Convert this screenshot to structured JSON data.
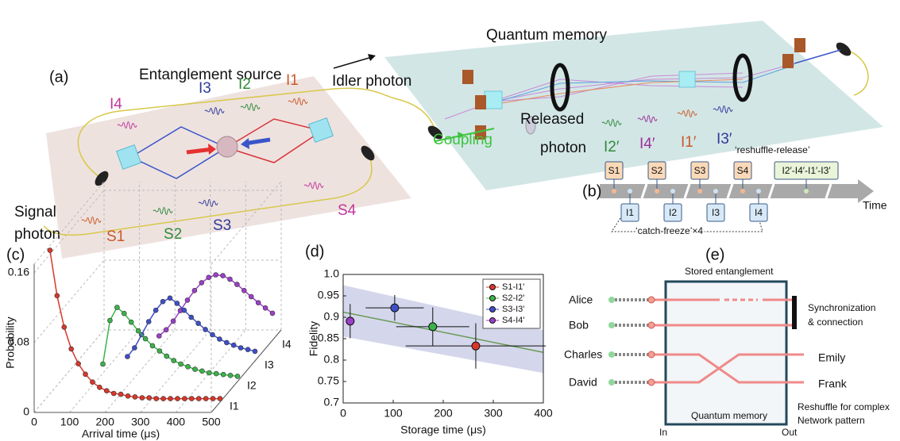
{
  "panel_a": {
    "label": "(a)",
    "source_title": "Entanglement source",
    "memory_title": "Quantum memory",
    "idler_photon": "Idler photon",
    "coupling": "Coupling",
    "released_photon": [
      "Released",
      "photon"
    ],
    "signal_photon": [
      "Signal",
      "photon"
    ],
    "idler_modes": [
      "I4",
      "I3",
      "I2",
      "I1"
    ],
    "released_modes": [
      "I2′",
      "I4′",
      "I1′",
      "I3′"
    ],
    "signal_modes": [
      "S1",
      "S2",
      "S3",
      "S4"
    ]
  },
  "panel_b": {
    "label": "(b)",
    "release_label": "‘reshuffle-release’",
    "signal_boxes": [
      "S1",
      "S2",
      "S3",
      "S4"
    ],
    "release_box": "I2′-I4′-I1′-I3′",
    "idler_boxes": [
      "I1",
      "I2",
      "I3",
      "I4"
    ],
    "time": "Time",
    "catch_label": "‘catch-freeze’×4"
  },
  "panel_e": {
    "label": "(e)",
    "title": "Stored entanglement",
    "users_in": [
      "Alice",
      "Bob",
      "Charles",
      "David"
    ],
    "sync": [
      "Synchronization",
      "& connection"
    ],
    "users_out": [
      "Emily",
      "Frank"
    ],
    "memory": "Quantum memory",
    "in": "In",
    "out": "Out",
    "note": [
      "Reshuffle for complex",
      "Network pattern"
    ]
  },
  "chart_data": [
    {
      "type": "line",
      "panel_label": "(c)",
      "xlabel": "Arrival time (μs)",
      "ylabel": "Probability",
      "xlim": [
        0,
        500
      ],
      "xticks": [
        0,
        100,
        200,
        300,
        400,
        500
      ],
      "ylim": [
        0,
        0.17
      ],
      "yticks": [
        0,
        0.08,
        0.16
      ],
      "grid": true,
      "series": [
        {
          "name": "I1",
          "color": "#d9372b",
          "x": [
            20,
            40,
            60,
            80,
            100,
            120,
            140,
            160,
            180,
            200,
            220,
            240,
            260,
            280,
            300,
            320,
            340,
            360,
            380,
            400,
            420,
            440,
            460,
            480,
            500
          ],
          "values": [
            0.174,
            0.122,
            0.086,
            0.061,
            0.044,
            0.032,
            0.023,
            0.017,
            0.013,
            0.01,
            0.009,
            0.007,
            0.006,
            0.005,
            0.005,
            0.004,
            0.004,
            0.004,
            0.004,
            0.004,
            0.004,
            0.004,
            0.004,
            0.004,
            0.004
          ]
        },
        {
          "name": "I2",
          "color": "#3cb34a",
          "x": [
            120,
            140,
            160,
            180,
            200,
            220,
            240,
            260,
            280,
            300,
            320,
            340,
            360,
            380,
            400,
            420,
            440,
            460,
            480,
            500
          ],
          "values": [
            0.02,
            0.07,
            0.085,
            0.078,
            0.068,
            0.058,
            0.049,
            0.041,
            0.035,
            0.029,
            0.024,
            0.02,
            0.017,
            0.014,
            0.012,
            0.01,
            0.009,
            0.008,
            0.007,
            0.006
          ]
        },
        {
          "name": "I3",
          "color": "#3f4fc9",
          "x": [
            140,
            160,
            180,
            200,
            220,
            240,
            260,
            280,
            300,
            320,
            340,
            360,
            380,
            400,
            420,
            440,
            460,
            480,
            500
          ],
          "values": [
            0.005,
            0.015,
            0.03,
            0.045,
            0.058,
            0.068,
            0.072,
            0.066,
            0.058,
            0.05,
            0.043,
            0.036,
            0.03,
            0.025,
            0.021,
            0.018,
            0.015,
            0.013,
            0.011
          ]
        },
        {
          "name": "I4",
          "color": "#9b3fc9",
          "x": [
            180,
            200,
            220,
            240,
            260,
            280,
            300,
            320,
            340,
            360,
            380,
            400,
            420,
            440,
            460,
            480,
            500
          ],
          "values": [
            0.005,
            0.012,
            0.022,
            0.034,
            0.046,
            0.057,
            0.066,
            0.072,
            0.075,
            0.074,
            0.07,
            0.064,
            0.057,
            0.05,
            0.043,
            0.037,
            0.031
          ]
        }
      ]
    },
    {
      "type": "scatter",
      "panel_label": "(d)",
      "xlabel": "Storage time (μs)",
      "ylabel": "Fidelity",
      "xlim": [
        0,
        400
      ],
      "xticks": [
        0,
        100,
        200,
        300,
        400
      ],
      "ylim": [
        0.7,
        1.0
      ],
      "yticks": [
        0.7,
        0.75,
        0.8,
        0.85,
        0.9,
        0.95,
        {
          "value": 1.0,
          "label": "1.0"
        }
      ],
      "legend": "upper right",
      "band": {
        "x": [
          0,
          400
        ],
        "lower": [
          0.855,
          0.77
        ],
        "upper": [
          0.975,
          0.87
        ],
        "color": "#c9cde6"
      },
      "fit": {
        "x": [
          0,
          400
        ],
        "values": [
          0.912,
          0.818
        ],
        "color": "#6a9a55"
      },
      "series": [
        {
          "name": "S1-I1'",
          "color": "#d9372b",
          "x": [
            265
          ],
          "values": [
            0.833
          ],
          "xerr": [
            140
          ],
          "yerr": [
            0.053
          ]
        },
        {
          "name": "S2-I2'",
          "color": "#3cb34a",
          "x": [
            179
          ],
          "values": [
            0.878
          ],
          "xerr": [
            73
          ],
          "yerr": [
            0.045
          ]
        },
        {
          "name": "S3-I3'",
          "color": "#3f4fc9",
          "x": [
            103
          ],
          "values": [
            0.922
          ],
          "xerr": [
            58
          ],
          "yerr": [
            0.03
          ]
        },
        {
          "name": "S4-I4'",
          "color": "#9b3fc9",
          "x": [
            14
          ],
          "values": [
            0.891
          ],
          "xerr": [
            null
          ],
          "yerr": [
            0.04
          ]
        }
      ]
    }
  ]
}
